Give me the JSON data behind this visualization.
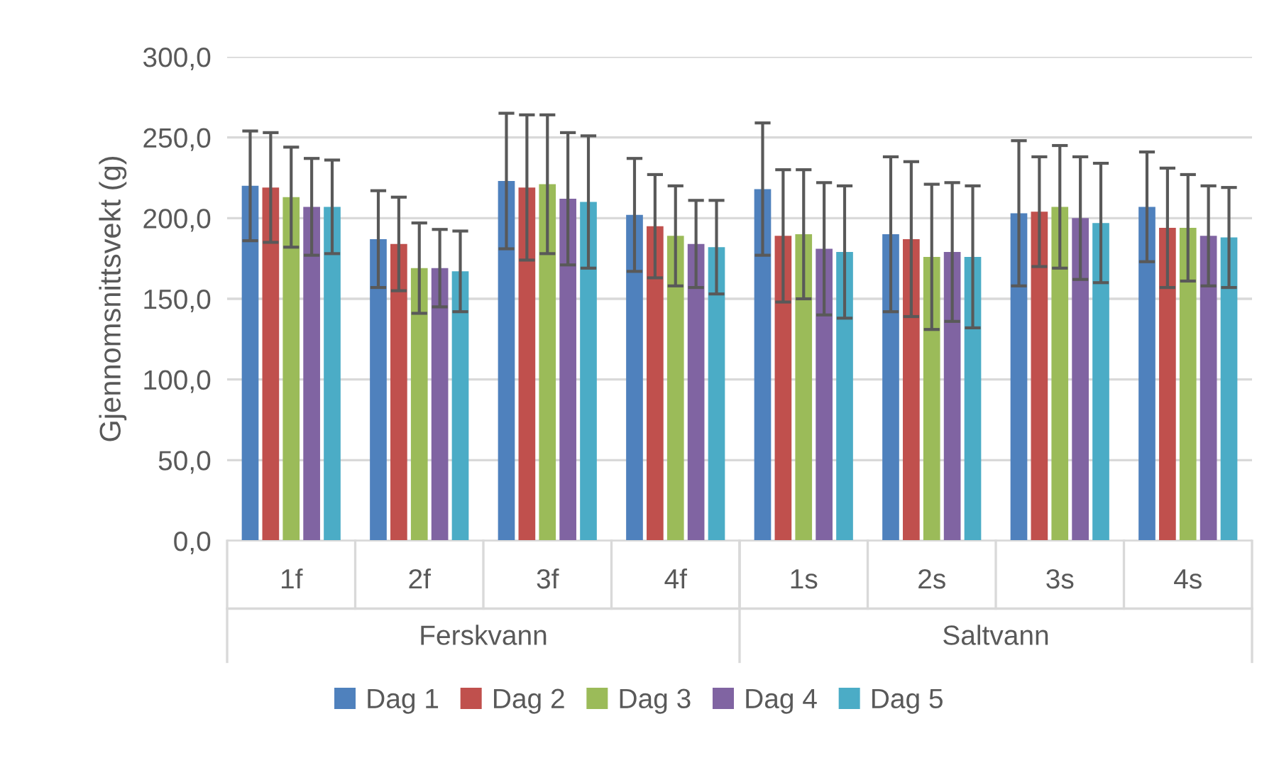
{
  "chart_data": {
    "type": "bar",
    "ylabel": "Gjennomsnittsvekt (g)",
    "categories": [
      "1f",
      "2f",
      "3f",
      "4f",
      "1s",
      "2s",
      "3s",
      "4s"
    ],
    "annotations": [
      "Ferskvann",
      "Saltvann"
    ],
    "ylim": [
      0,
      300
    ],
    "yticks": [
      {
        "value": 0,
        "label": "0,0"
      },
      {
        "value": 50,
        "label": "50,0"
      },
      {
        "value": 100,
        "label": "100,0"
      },
      {
        "value": 150,
        "label": "150,0"
      },
      {
        "value": 200,
        "label": "200,0"
      },
      {
        "value": 250,
        "label": "250,0"
      },
      {
        "value": 300,
        "label": "300,0"
      }
    ],
    "grid": "y",
    "legend": "bottom",
    "series": [
      {
        "name": "Dag 1",
        "color": "#4f81bd",
        "values": [
          220,
          187,
          223,
          202,
          218,
          190,
          203,
          207
        ],
        "errors": [
          34,
          30,
          42,
          35,
          41,
          48,
          45,
          34
        ]
      },
      {
        "name": "Dag 2",
        "color": "#c0504d",
        "values": [
          219,
          184,
          219,
          195,
          189,
          187,
          204,
          194
        ],
        "errors": [
          34,
          29,
          45,
          32,
          41,
          48,
          34,
          37
        ]
      },
      {
        "name": "Dag 3",
        "color": "#9bbb59",
        "values": [
          213,
          169,
          221,
          189,
          190,
          176,
          207,
          194
        ],
        "errors": [
          31,
          28,
          43,
          31,
          40,
          45,
          38,
          33
        ]
      },
      {
        "name": "Dag 4",
        "color": "#8064a2",
        "values": [
          207,
          169,
          212,
          184,
          181,
          179,
          200,
          189
        ],
        "errors": [
          30,
          24,
          41,
          27,
          41,
          43,
          38,
          31
        ]
      },
      {
        "name": "Dag 5",
        "color": "#4bacc6",
        "values": [
          207,
          167,
          210,
          182,
          179,
          176,
          197,
          188
        ],
        "errors": [
          29,
          25,
          41,
          29,
          41,
          44,
          37,
          31
        ]
      }
    ]
  }
}
